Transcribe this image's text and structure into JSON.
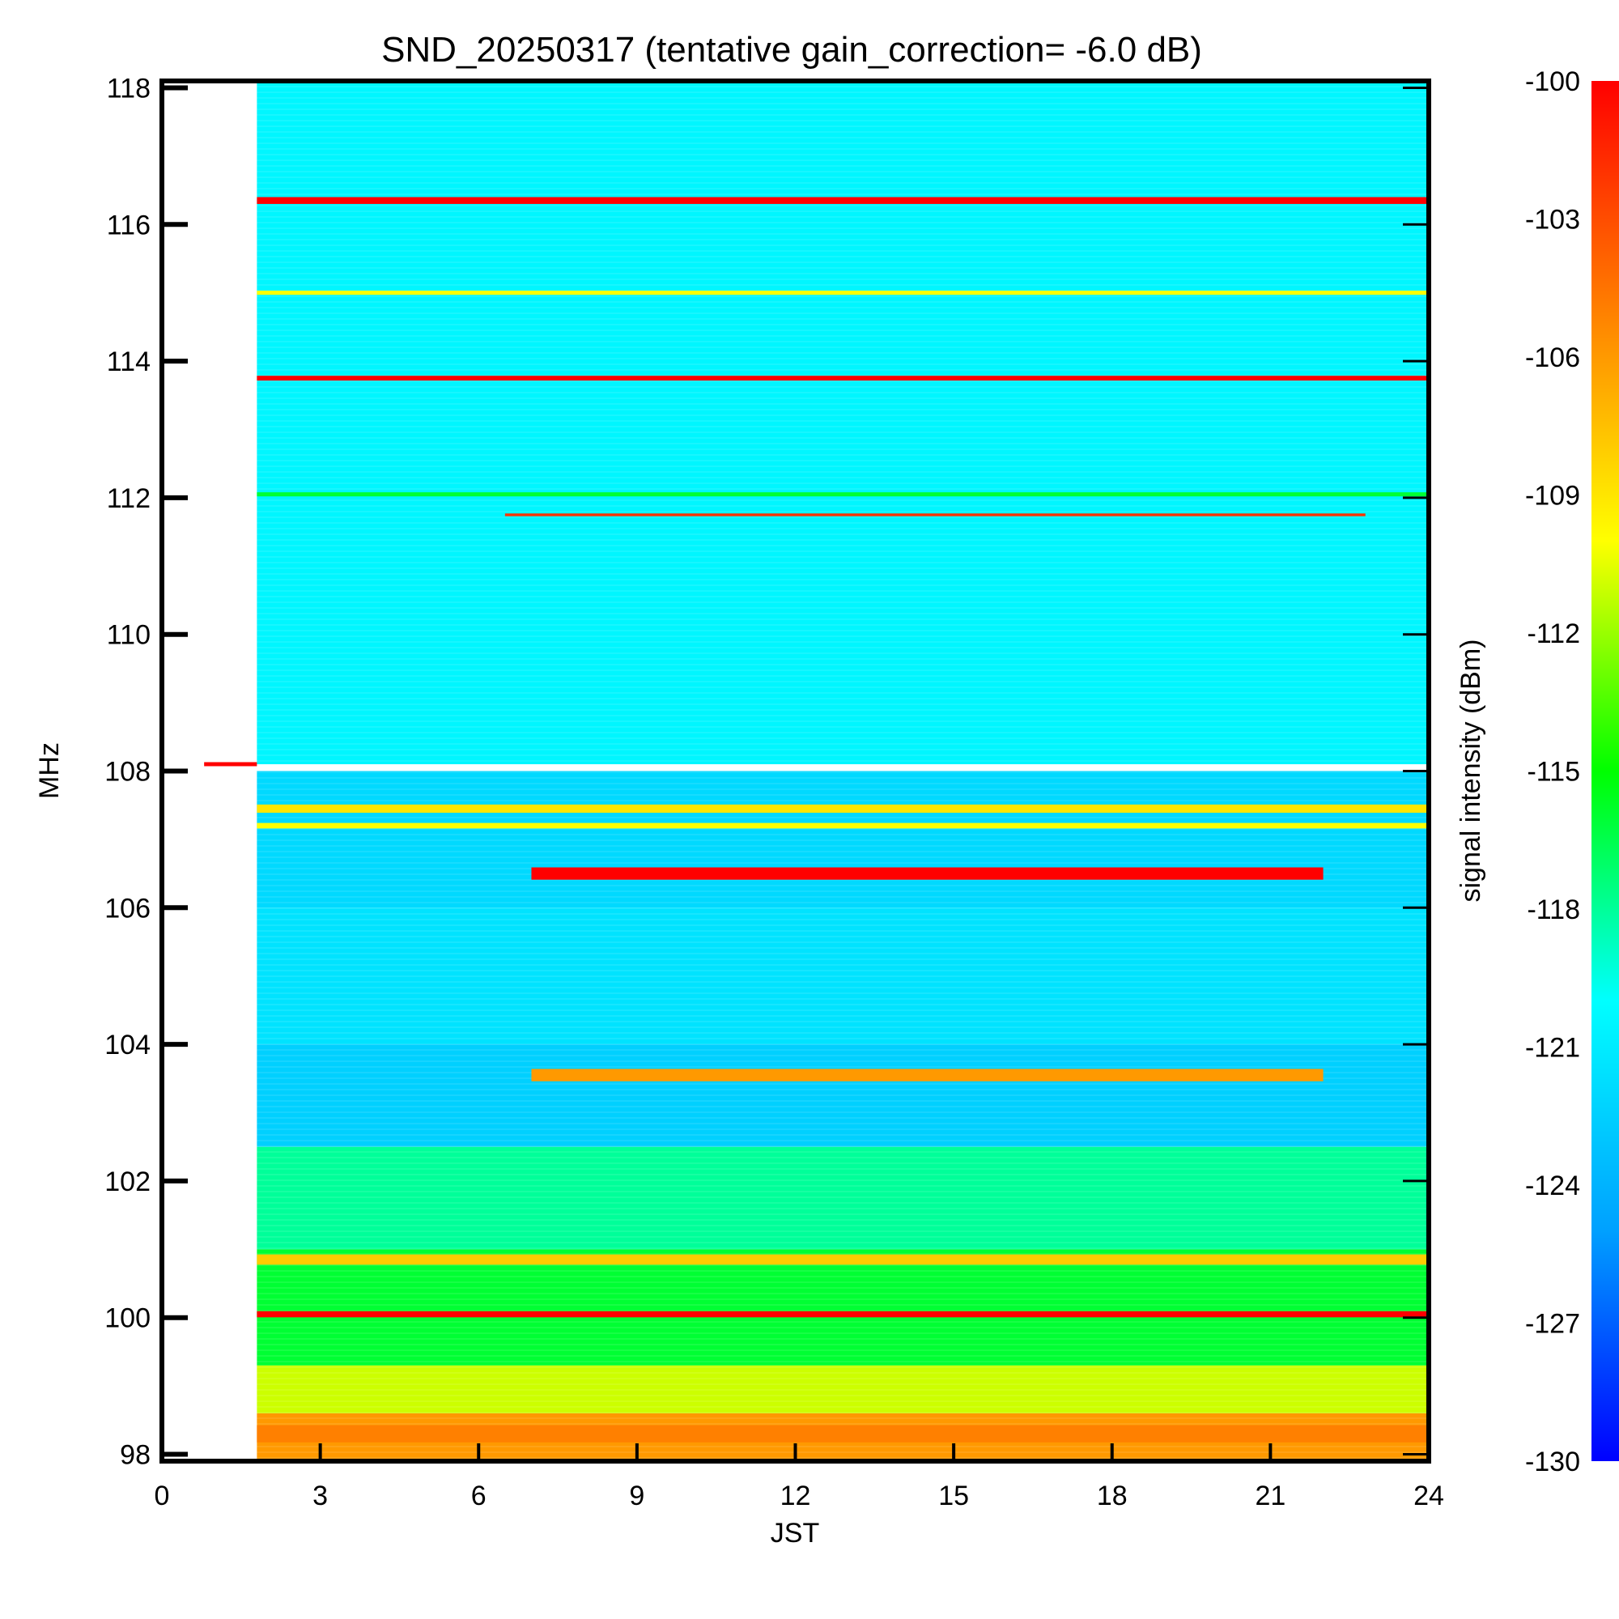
{
  "chart_data": {
    "type": "heatmap",
    "title": "SND_20250317 (tentative gain_correction= -6.0 dB)",
    "xlabel": "JST",
    "ylabel": "MHz",
    "colorbar_label": "signal intensity (dBm)",
    "xlim": [
      0,
      24
    ],
    "ylim": [
      97.9,
      118.1
    ],
    "data_x_start": 1.8,
    "x_ticks": [
      "0",
      "3",
      "6",
      "9",
      "12",
      "15",
      "18",
      "21",
      "24"
    ],
    "y_ticks": [
      "98",
      "100",
      "102",
      "104",
      "106",
      "108",
      "110",
      "112",
      "114",
      "116",
      "118"
    ],
    "colorbar_range": [
      -130,
      -100
    ],
    "colorbar_ticks": [
      "-100",
      "-103",
      "-106",
      "-109",
      "-112",
      "-115",
      "-118",
      "-121",
      "-124",
      "-127",
      "-130"
    ],
    "colormap": [
      "#0000ff",
      "#00a0ff",
      "#00ffff",
      "#00ff00",
      "#ffff00",
      "#ff8000",
      "#ff0000"
    ],
    "marker": {
      "freq": 108.1,
      "x_start": 0.8,
      "x_end": 1.8,
      "color": "#ff0000"
    },
    "background_bands": [
      {
        "freq_min": 108.1,
        "freq_max": 118.1,
        "level": -120.5
      },
      {
        "freq_min": 106.0,
        "freq_max": 108.0,
        "level": -122.0
      },
      {
        "freq_min": 104.0,
        "freq_max": 106.0,
        "level": -121.5
      },
      {
        "freq_min": 102.5,
        "freq_max": 104.0,
        "level": -122.5
      },
      {
        "freq_min": 101.0,
        "freq_max": 102.5,
        "level": -118.0
      },
      {
        "freq_min": 99.3,
        "freq_max": 101.0,
        "level": -116.0
      },
      {
        "freq_min": 98.6,
        "freq_max": 99.3,
        "level": -111.0
      },
      {
        "freq_min": 97.9,
        "freq_max": 98.6,
        "level": -106.0
      }
    ],
    "strong_lines": [
      {
        "freq": 116.35,
        "x_start": 1.8,
        "x_end": 24,
        "level": -100,
        "thickness_mhz": 0.1
      },
      {
        "freq": 115.0,
        "x_start": 1.8,
        "x_end": 24,
        "level": -110,
        "thickness_mhz": 0.06
      },
      {
        "freq": 113.75,
        "x_start": 1.8,
        "x_end": 24,
        "level": -100,
        "thickness_mhz": 0.07
      },
      {
        "freq": 112.05,
        "x_start": 1.8,
        "x_end": 24,
        "level": -116,
        "thickness_mhz": 0.06
      },
      {
        "freq": 111.75,
        "x_start": 6.5,
        "x_end": 22.8,
        "level": -102,
        "thickness_mhz": 0.04
      },
      {
        "freq": 107.45,
        "x_start": 1.8,
        "x_end": 24,
        "level": -109,
        "thickness_mhz": 0.12
      },
      {
        "freq": 107.2,
        "x_start": 1.8,
        "x_end": 24,
        "level": -110,
        "thickness_mhz": 0.08
      },
      {
        "freq": 106.5,
        "x_start": 7.0,
        "x_end": 22.0,
        "level": -100,
        "thickness_mhz": 0.18
      },
      {
        "freq": 103.55,
        "x_start": 7.0,
        "x_end": 22.0,
        "level": -106,
        "thickness_mhz": 0.18
      },
      {
        "freq": 100.85,
        "x_start": 1.8,
        "x_end": 24,
        "level": -108,
        "thickness_mhz": 0.15
      },
      {
        "freq": 100.05,
        "x_start": 1.8,
        "x_end": 24,
        "level": -100,
        "thickness_mhz": 0.09
      },
      {
        "freq": 98.3,
        "x_start": 1.8,
        "x_end": 24,
        "level": -105,
        "thickness_mhz": 0.25
      }
    ],
    "colors": {
      "axis": "#000000",
      "background": "#ffffff"
    }
  }
}
